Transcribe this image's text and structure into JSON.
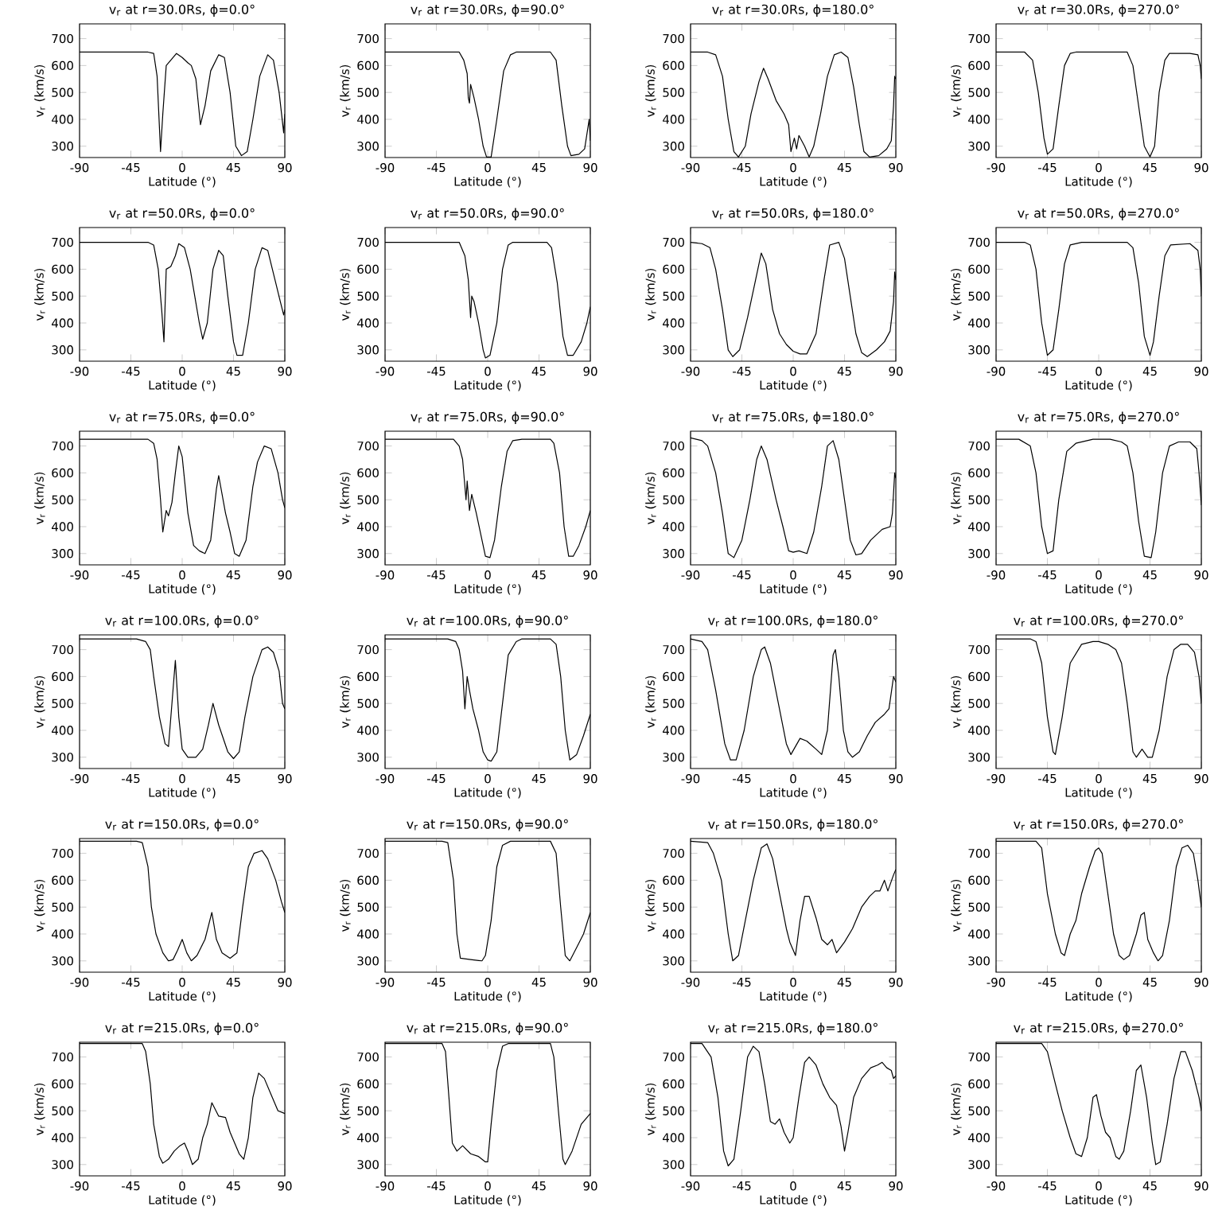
{
  "chart_data": [
    {
      "type": "line",
      "title": "v$_{r}$ at r=30.0Rs, ϕ=0.0°",
      "xlabel": "Latitude (°)",
      "ylabel": "v$_{r}$ (km/s)",
      "xlim": [
        -90,
        90
      ],
      "ylim": [
        258,
        755
      ],
      "xticks": [
        -90,
        -45,
        0,
        45,
        90
      ],
      "yticks": [
        300,
        400,
        500,
        600,
        700
      ],
      "color": "#000000",
      "x": [
        -90,
        -30,
        -25,
        -22,
        -19,
        -17,
        -14,
        -10,
        -5,
        0,
        5,
        8,
        12,
        16,
        20,
        25,
        32,
        37,
        42,
        47,
        52,
        57,
        62,
        68,
        75,
        80,
        85,
        89,
        90
      ],
      "values": [
        650,
        650,
        645,
        560,
        280,
        420,
        600,
        620,
        645,
        630,
        610,
        600,
        550,
        380,
        450,
        580,
        640,
        630,
        500,
        300,
        265,
        280,
        400,
        560,
        640,
        620,
        500,
        350,
        420
      ]
    },
    {
      "type": "line",
      "title": "v$_{r}$ at r=30.0Rs, ϕ=90.0°",
      "xlabel": "Latitude (°)",
      "ylabel": "v$_{r}$ (km/s)",
      "xlim": [
        -90,
        90
      ],
      "ylim": [
        258,
        755
      ],
      "xticks": [
        -90,
        -45,
        0,
        45,
        90
      ],
      "yticks": [
        300,
        400,
        500,
        600,
        700
      ],
      "color": "#000000",
      "x": [
        -90,
        -25,
        -21,
        -18,
        -17,
        -16,
        -15,
        -12,
        -8,
        -4,
        -1,
        3,
        8,
        14,
        20,
        25,
        55,
        60,
        65,
        70,
        73,
        80,
        85,
        89,
        90
      ],
      "values": [
        650,
        650,
        620,
        570,
        480,
        460,
        530,
        480,
        400,
        300,
        260,
        260,
        400,
        580,
        640,
        650,
        650,
        620,
        450,
        300,
        265,
        270,
        290,
        400,
        320
      ]
    },
    {
      "type": "line",
      "title": "v$_{r}$ at r=30.0Rs, ϕ=180.0°",
      "xlabel": "Latitude (°)",
      "ylabel": "v$_{r}$ (km/s)",
      "xlim": [
        -90,
        90
      ],
      "ylim": [
        258,
        755
      ],
      "xticks": [
        -90,
        -45,
        0,
        45,
        90
      ],
      "yticks": [
        300,
        400,
        500,
        600,
        700
      ],
      "color": "#000000",
      "x": [
        -90,
        -75,
        -68,
        -62,
        -57,
        -52,
        -48,
        -42,
        -37,
        -30,
        -26,
        -22,
        -15,
        -8,
        -4,
        -2,
        1,
        3,
        5,
        10,
        14,
        18,
        24,
        30,
        36,
        42,
        48,
        53,
        58,
        62,
        67,
        75,
        82,
        86,
        88,
        89,
        90
      ],
      "values": [
        650,
        650,
        640,
        560,
        400,
        280,
        260,
        300,
        420,
        540,
        590,
        550,
        470,
        420,
        380,
        280,
        330,
        290,
        340,
        300,
        260,
        300,
        420,
        560,
        640,
        650,
        630,
        520,
        380,
        280,
        260,
        265,
        290,
        320,
        450,
        560,
        550
      ]
    },
    {
      "type": "line",
      "title": "v$_{r}$ at r=30.0Rs, ϕ=270.0°",
      "xlabel": "Latitude (°)",
      "ylabel": "v$_{r}$ (km/s)",
      "xlim": [
        -90,
        90
      ],
      "ylim": [
        258,
        755
      ],
      "xticks": [
        -90,
        -45,
        0,
        45,
        90
      ],
      "yticks": [
        300,
        400,
        500,
        600,
        700
      ],
      "color": "#000000",
      "x": [
        -90,
        -65,
        -58,
        -53,
        -48,
        -45,
        -40,
        -35,
        -30,
        -25,
        -20,
        25,
        30,
        35,
        40,
        45,
        49,
        53,
        58,
        62,
        80,
        87,
        89,
        90
      ],
      "values": [
        650,
        650,
        620,
        500,
        330,
        270,
        290,
        450,
        600,
        645,
        650,
        650,
        600,
        450,
        300,
        260,
        300,
        500,
        620,
        645,
        645,
        640,
        600,
        550
      ]
    },
    {
      "type": "line",
      "title": "v$_{r}$ at r=50.0Rs, ϕ=0.0°",
      "xlabel": "Latitude (°)",
      "ylabel": "v$_{r}$ (km/s)",
      "xlim": [
        -90,
        90
      ],
      "ylim": [
        258,
        755
      ],
      "xticks": [
        -90,
        -45,
        0,
        45,
        90
      ],
      "yticks": [
        300,
        400,
        500,
        600,
        700
      ],
      "color": "#000000",
      "x": [
        -90,
        -30,
        -25,
        -21,
        -18,
        -16,
        -14,
        -10,
        -6,
        -3,
        2,
        7,
        11,
        15,
        18,
        22,
        27,
        32,
        36,
        40,
        45,
        48,
        53,
        58,
        64,
        70,
        75,
        82,
        86,
        89,
        90
      ],
      "values": [
        700,
        700,
        690,
        600,
        450,
        330,
        600,
        610,
        650,
        695,
        680,
        600,
        500,
        400,
        340,
        400,
        600,
        670,
        650,
        500,
        330,
        280,
        280,
        400,
        600,
        680,
        670,
        550,
        480,
        430,
        450
      ]
    },
    {
      "type": "line",
      "title": "v$_{r}$ at r=50.0Rs, ϕ=90.0°",
      "xlabel": "Latitude (°)",
      "ylabel": "v$_{r}$ (km/s)",
      "xlim": [
        -90,
        90
      ],
      "ylim": [
        258,
        755
      ],
      "xticks": [
        -90,
        -45,
        0,
        45,
        90
      ],
      "yticks": [
        300,
        400,
        500,
        600,
        700
      ],
      "color": "#000000",
      "x": [
        -90,
        -25,
        -20,
        -17,
        -15,
        -14,
        -12,
        -8,
        -4,
        -2,
        2,
        8,
        13,
        18,
        22,
        52,
        56,
        61,
        66,
        70,
        75,
        82,
        87,
        90
      ],
      "values": [
        700,
        700,
        650,
        560,
        420,
        500,
        480,
        400,
        300,
        270,
        280,
        400,
        600,
        690,
        700,
        700,
        680,
        550,
        350,
        280,
        280,
        330,
        400,
        460
      ]
    },
    {
      "type": "line",
      "title": "v$_{r}$ at r=50.0Rs, ϕ=180.0°",
      "xlabel": "Latitude (°)",
      "ylabel": "v$_{r}$ (km/s)",
      "xlim": [
        -90,
        90
      ],
      "ylim": [
        258,
        755
      ],
      "xticks": [
        -90,
        -45,
        0,
        45,
        90
      ],
      "yticks": [
        300,
        400,
        500,
        600,
        700
      ],
      "color": "#000000",
      "x": [
        -90,
        -80,
        -73,
        -68,
        -62,
        -57,
        -53,
        -47,
        -40,
        -33,
        -28,
        -24,
        -18,
        -12,
        -6,
        0,
        6,
        12,
        20,
        27,
        32,
        40,
        45,
        50,
        55,
        60,
        65,
        73,
        80,
        85,
        88,
        89,
        90
      ],
      "values": [
        700,
        695,
        680,
        600,
        450,
        300,
        275,
        300,
        420,
        560,
        660,
        620,
        450,
        360,
        320,
        295,
        285,
        285,
        360,
        560,
        690,
        700,
        640,
        500,
        360,
        290,
        275,
        300,
        330,
        370,
        480,
        590,
        560
      ]
    },
    {
      "type": "line",
      "title": "v$_{r}$ at r=50.0Rs, ϕ=270.0°",
      "xlabel": "Latitude (°)",
      "ylabel": "v$_{r}$ (km/s)",
      "xlim": [
        -90,
        90
      ],
      "ylim": [
        258,
        755
      ],
      "xticks": [
        -90,
        -45,
        0,
        45,
        90
      ],
      "yticks": [
        300,
        400,
        500,
        600,
        700
      ],
      "color": "#000000",
      "x": [
        -90,
        -65,
        -60,
        -55,
        -50,
        -45,
        -40,
        -35,
        -30,
        -25,
        -15,
        25,
        30,
        35,
        40,
        45,
        48,
        53,
        58,
        63,
        80,
        87,
        89,
        90
      ],
      "values": [
        700,
        700,
        690,
        600,
        400,
        280,
        300,
        450,
        620,
        690,
        700,
        700,
        680,
        550,
        350,
        280,
        330,
        500,
        650,
        690,
        695,
        670,
        600,
        500
      ]
    },
    {
      "type": "line",
      "title": "v$_{r}$ at r=75.0Rs, ϕ=0.0°",
      "xlabel": "Latitude (°)",
      "ylabel": "v$_{r}$ (km/s)",
      "xlim": [
        -90,
        90
      ],
      "ylim": [
        258,
        755
      ],
      "xticks": [
        -90,
        -45,
        0,
        45,
        90
      ],
      "yticks": [
        300,
        400,
        500,
        600,
        700
      ],
      "color": "#000000",
      "x": [
        -90,
        -30,
        -25,
        -22,
        -19,
        -17,
        -14,
        -12,
        -9,
        -6,
        -3,
        0,
        5,
        10,
        15,
        20,
        25,
        30,
        32,
        38,
        42,
        46,
        50,
        56,
        62,
        66,
        72,
        78,
        84,
        88,
        90
      ],
      "values": [
        725,
        725,
        710,
        650,
        500,
        380,
        460,
        440,
        490,
        600,
        700,
        660,
        450,
        330,
        310,
        300,
        350,
        540,
        590,
        450,
        380,
        300,
        290,
        350,
        550,
        640,
        700,
        690,
        600,
        500,
        470
      ]
    },
    {
      "type": "line",
      "title": "v$_{r}$ at r=75.0Rs, ϕ=90.0°",
      "xlabel": "Latitude (°)",
      "ylabel": "v$_{r}$ (km/s)",
      "xlim": [
        -90,
        90
      ],
      "ylim": [
        258,
        755
      ],
      "xticks": [
        -90,
        -45,
        0,
        45,
        90
      ],
      "yticks": [
        300,
        400,
        500,
        600,
        700
      ],
      "color": "#000000",
      "x": [
        -90,
        -30,
        -25,
        -22,
        -19,
        -18,
        -16,
        -14,
        -10,
        -5,
        -2,
        2,
        6,
        12,
        17,
        22,
        30,
        55,
        58,
        63,
        67,
        71,
        75,
        80,
        86,
        90
      ],
      "values": [
        725,
        725,
        700,
        650,
        500,
        570,
        460,
        520,
        450,
        350,
        290,
        285,
        350,
        550,
        680,
        720,
        725,
        725,
        710,
        600,
        400,
        290,
        290,
        330,
        400,
        460
      ]
    },
    {
      "type": "line",
      "title": "v$_{r}$ at r=75.0Rs, ϕ=180.0°",
      "xlabel": "Latitude (°)",
      "ylabel": "v$_{r}$ (km/s)",
      "xlim": [
        -90,
        90
      ],
      "ylim": [
        258,
        755
      ],
      "xticks": [
        -90,
        -45,
        0,
        45,
        90
      ],
      "yticks": [
        300,
        400,
        500,
        600,
        700
      ],
      "color": "#000000",
      "x": [
        -90,
        -80,
        -75,
        -68,
        -62,
        -57,
        -52,
        -45,
        -38,
        -32,
        -28,
        -23,
        -15,
        -9,
        -4,
        0,
        5,
        12,
        18,
        25,
        30,
        35,
        40,
        45,
        50,
        55,
        60,
        68,
        78,
        85,
        87,
        89,
        90
      ],
      "values": [
        730,
        720,
        700,
        600,
        450,
        300,
        285,
        350,
        500,
        650,
        700,
        650,
        500,
        400,
        310,
        305,
        310,
        300,
        380,
        550,
        700,
        720,
        650,
        500,
        350,
        295,
        300,
        350,
        390,
        400,
        450,
        600,
        580
      ]
    },
    {
      "type": "line",
      "title": "v$_{r}$ at r=75.0Rs, ϕ=270.0°",
      "xlabel": "Latitude (°)",
      "ylabel": "v$_{r}$ (km/s)",
      "xlim": [
        -90,
        90
      ],
      "ylim": [
        258,
        755
      ],
      "xticks": [
        -90,
        -45,
        0,
        45,
        90
      ],
      "yticks": [
        300,
        400,
        500,
        600,
        700
      ],
      "color": "#000000",
      "x": [
        -90,
        -70,
        -60,
        -55,
        -50,
        -45,
        -40,
        -35,
        -28,
        -20,
        -5,
        10,
        20,
        25,
        30,
        35,
        40,
        46,
        50,
        56,
        62,
        70,
        80,
        86,
        88,
        90
      ],
      "values": [
        725,
        725,
        700,
        600,
        400,
        300,
        310,
        500,
        680,
        710,
        725,
        725,
        715,
        700,
        600,
        420,
        290,
        285,
        380,
        600,
        700,
        715,
        715,
        690,
        600,
        480
      ]
    },
    {
      "type": "line",
      "title": "v$_{r}$ at r=100.0Rs, ϕ=0.0°",
      "xlabel": "Latitude (°)",
      "ylabel": "v$_{r}$ (km/s)",
      "xlim": [
        -90,
        90
      ],
      "ylim": [
        258,
        755
      ],
      "xticks": [
        -90,
        -45,
        0,
        45,
        90
      ],
      "yticks": [
        300,
        400,
        500,
        600,
        700
      ],
      "color": "#000000",
      "x": [
        -90,
        -40,
        -32,
        -28,
        -25,
        -20,
        -15,
        -12,
        -9,
        -6,
        -3,
        0,
        5,
        12,
        18,
        23,
        27,
        32,
        40,
        45,
        50,
        55,
        62,
        70,
        75,
        80,
        85,
        88,
        90
      ],
      "values": [
        740,
        740,
        730,
        700,
        600,
        450,
        350,
        340,
        500,
        660,
        450,
        330,
        300,
        300,
        330,
        420,
        500,
        420,
        320,
        295,
        320,
        450,
        600,
        700,
        710,
        690,
        620,
        500,
        480
      ]
    },
    {
      "type": "line",
      "title": "v$_{r}$ at r=100.0Rs, ϕ=90.0°",
      "xlabel": "Latitude (°)",
      "ylabel": "v$_{r}$ (km/s)",
      "xlim": [
        -90,
        90
      ],
      "ylim": [
        258,
        755
      ],
      "xticks": [
        -90,
        -45,
        0,
        45,
        90
      ],
      "yticks": [
        300,
        400,
        500,
        600,
        700
      ],
      "color": "#000000",
      "x": [
        -90,
        -35,
        -28,
        -25,
        -22,
        -20,
        -18,
        -16,
        -13,
        -8,
        -4,
        0,
        3,
        8,
        13,
        18,
        25,
        30,
        55,
        60,
        64,
        68,
        72,
        78,
        84,
        90
      ],
      "values": [
        740,
        740,
        730,
        700,
        620,
        480,
        600,
        550,
        480,
        400,
        320,
        290,
        285,
        320,
        500,
        680,
        730,
        740,
        740,
        720,
        600,
        400,
        290,
        310,
        380,
        460
      ]
    },
    {
      "type": "line",
      "title": "v$_{r}$ at r=100.0Rs, ϕ=180.0°",
      "xlabel": "Latitude (°)",
      "ylabel": "v$_{r}$ (km/s)",
      "xlim": [
        -90,
        90
      ],
      "ylim": [
        258,
        755
      ],
      "xticks": [
        -90,
        -45,
        0,
        45,
        90
      ],
      "yticks": [
        300,
        400,
        500,
        600,
        700
      ],
      "color": "#000000",
      "x": [
        -90,
        -80,
        -75,
        -68,
        -60,
        -55,
        -50,
        -43,
        -35,
        -28,
        -25,
        -20,
        -13,
        -6,
        -2,
        2,
        6,
        12,
        20,
        25,
        30,
        35,
        37,
        40,
        44,
        48,
        52,
        58,
        65,
        72,
        80,
        84,
        88,
        90
      ],
      "values": [
        740,
        730,
        700,
        550,
        350,
        290,
        290,
        400,
        600,
        700,
        710,
        650,
        500,
        350,
        310,
        340,
        370,
        360,
        330,
        310,
        400,
        680,
        700,
        600,
        400,
        320,
        300,
        320,
        380,
        430,
        460,
        480,
        600,
        580
      ]
    },
    {
      "type": "line",
      "title": "v$_{r}$ at r=100.0Rs, ϕ=270.0°",
      "xlabel": "Latitude (°)",
      "ylabel": "v$_{r}$ (km/s)",
      "xlim": [
        -90,
        90
      ],
      "ylim": [
        258,
        755
      ],
      "xticks": [
        -90,
        -45,
        0,
        45,
        90
      ],
      "yticks": [
        300,
        400,
        500,
        600,
        700
      ],
      "color": "#000000",
      "x": [
        -90,
        -60,
        -55,
        -50,
        -45,
        -40,
        -38,
        -32,
        -25,
        -15,
        -5,
        0,
        8,
        15,
        20,
        25,
        30,
        33,
        38,
        43,
        47,
        53,
        60,
        66,
        72,
        78,
        84,
        88,
        90
      ],
      "values": [
        740,
        740,
        730,
        650,
        450,
        320,
        310,
        450,
        650,
        720,
        730,
        730,
        720,
        700,
        650,
        500,
        320,
        300,
        330,
        300,
        300,
        400,
        600,
        700,
        720,
        720,
        690,
        600,
        500
      ]
    },
    {
      "type": "line",
      "title": "v$_{r}$ at r=150.0Rs, ϕ=0.0°",
      "xlabel": "Latitude (°)",
      "ylabel": "v$_{r}$ (km/s)",
      "xlim": [
        -90,
        90
      ],
      "ylim": [
        258,
        755
      ],
      "xticks": [
        -90,
        -45,
        0,
        45,
        90
      ],
      "yticks": [
        300,
        400,
        500,
        600,
        700
      ],
      "color": "#000000",
      "x": [
        -90,
        -40,
        -35,
        -30,
        -27,
        -23,
        -17,
        -12,
        -8,
        -4,
        0,
        4,
        8,
        13,
        20,
        26,
        30,
        35,
        42,
        48,
        53,
        58,
        63,
        70,
        75,
        82,
        87,
        90
      ],
      "values": [
        745,
        745,
        740,
        650,
        500,
        400,
        330,
        300,
        305,
        340,
        380,
        330,
        300,
        320,
        380,
        480,
        380,
        330,
        310,
        330,
        500,
        650,
        700,
        710,
        680,
        600,
        520,
        480
      ]
    },
    {
      "type": "line",
      "title": "v$_{r}$ at r=150.0Rs, ϕ=90.0°",
      "xlabel": "Latitude (°)",
      "ylabel": "v$_{r}$ (km/s)",
      "xlim": [
        -90,
        90
      ],
      "ylim": [
        258,
        755
      ],
      "xticks": [
        -90,
        -45,
        0,
        45,
        90
      ],
      "yticks": [
        300,
        400,
        500,
        600,
        700
      ],
      "color": "#000000",
      "x": [
        -90,
        -40,
        -35,
        -30,
        -27,
        -24,
        -15,
        -5,
        -2,
        3,
        8,
        13,
        20,
        55,
        60,
        64,
        68,
        72,
        78,
        84,
        90
      ],
      "values": [
        745,
        745,
        740,
        600,
        400,
        310,
        305,
        300,
        320,
        450,
        650,
        730,
        745,
        745,
        700,
        500,
        320,
        300,
        350,
        400,
        480
      ]
    },
    {
      "type": "line",
      "title": "v$_{r}$ at r=150.0Rs, ϕ=180.0°",
      "xlabel": "Latitude (°)",
      "ylabel": "v$_{r}$ (km/s)",
      "xlim": [
        -90,
        90
      ],
      "ylim": [
        258,
        755
      ],
      "xticks": [
        -90,
        -45,
        0,
        45,
        90
      ],
      "yticks": [
        300,
        400,
        500,
        600,
        700
      ],
      "color": "#000000",
      "x": [
        -90,
        -75,
        -70,
        -63,
        -57,
        -53,
        -48,
        -42,
        -35,
        -28,
        -23,
        -18,
        -12,
        -6,
        -3,
        0,
        2,
        6,
        10,
        14,
        20,
        25,
        30,
        34,
        38,
        45,
        52,
        60,
        67,
        72,
        76,
        80,
        83,
        88,
        90
      ],
      "values": [
        745,
        740,
        700,
        600,
        400,
        300,
        320,
        450,
        600,
        720,
        735,
        680,
        550,
        420,
        370,
        340,
        320,
        450,
        540,
        540,
        460,
        380,
        360,
        380,
        330,
        370,
        420,
        500,
        540,
        560,
        560,
        600,
        560,
        620,
        640
      ]
    },
    {
      "type": "line",
      "title": "v$_{r}$ at r=150.0Rs, ϕ=270.0°",
      "xlabel": "Latitude (°)",
      "ylabel": "v$_{r}$ (km/s)",
      "xlim": [
        -90,
        90
      ],
      "ylim": [
        258,
        755
      ],
      "xticks": [
        -90,
        -45,
        0,
        45,
        90
      ],
      "yticks": [
        300,
        400,
        500,
        600,
        700
      ],
      "color": "#000000",
      "x": [
        -90,
        -55,
        -50,
        -45,
        -38,
        -33,
        -30,
        -25,
        -20,
        -15,
        -8,
        -3,
        0,
        3,
        8,
        13,
        18,
        22,
        27,
        33,
        37,
        40,
        43,
        48,
        52,
        56,
        62,
        68,
        73,
        78,
        83,
        87,
        90
      ],
      "values": [
        745,
        745,
        720,
        550,
        400,
        330,
        320,
        400,
        450,
        550,
        650,
        710,
        720,
        700,
        550,
        400,
        320,
        305,
        320,
        400,
        470,
        480,
        380,
        330,
        300,
        320,
        450,
        650,
        720,
        730,
        700,
        600,
        500
      ]
    },
    {
      "type": "line",
      "title": "v$_{r}$ at r=215.0Rs, ϕ=0.0°",
      "xlabel": "Latitude (°)",
      "ylabel": "v$_{r}$ (km/s)",
      "xlim": [
        -90,
        90
      ],
      "ylim": [
        258,
        755
      ],
      "xticks": [
        -90,
        -45,
        0,
        45,
        90
      ],
      "yticks": [
        300,
        400,
        500,
        600,
        700
      ],
      "color": "#000000",
      "x": [
        -90,
        -35,
        -32,
        -28,
        -25,
        -20,
        -17,
        -12,
        -7,
        -2,
        2,
        5,
        9,
        14,
        18,
        22,
        26,
        32,
        38,
        42,
        50,
        54,
        58,
        62,
        67,
        72,
        78,
        84,
        90
      ],
      "values": [
        750,
        750,
        720,
        600,
        450,
        330,
        305,
        320,
        350,
        370,
        380,
        350,
        300,
        320,
        400,
        450,
        530,
        480,
        475,
        420,
        340,
        320,
        400,
        550,
        640,
        620,
        560,
        500,
        490
      ]
    },
    {
      "type": "line",
      "title": "v$_{r}$ at r=215.0Rs, ϕ=90.0°",
      "xlabel": "Latitude (°)",
      "ylabel": "v$_{r}$ (km/s)",
      "xlim": [
        -90,
        90
      ],
      "ylim": [
        258,
        755
      ],
      "xticks": [
        -90,
        -45,
        0,
        45,
        90
      ],
      "yticks": [
        300,
        400,
        500,
        600,
        700
      ],
      "color": "#000000",
      "x": [
        -90,
        -40,
        -37,
        -34,
        -31,
        -27,
        -22,
        -15,
        -8,
        -2,
        0,
        3,
        8,
        13,
        18,
        55,
        58,
        62,
        66,
        68,
        74,
        82,
        90
      ],
      "values": [
        750,
        750,
        720,
        550,
        380,
        350,
        370,
        340,
        330,
        310,
        310,
        450,
        650,
        740,
        750,
        750,
        700,
        500,
        320,
        300,
        350,
        450,
        490
      ]
    },
    {
      "type": "line",
      "title": "v$_{r}$ at r=215.0Rs, ϕ=180.0°",
      "xlabel": "Latitude (°)",
      "ylabel": "v$_{r}$ (km/s)",
      "xlim": [
        -90,
        90
      ],
      "ylim": [
        258,
        755
      ],
      "xticks": [
        -90,
        -45,
        0,
        45,
        90
      ],
      "yticks": [
        300,
        400,
        500,
        600,
        700
      ],
      "color": "#000000",
      "x": [
        -90,
        -80,
        -72,
        -66,
        -61,
        -57,
        -52,
        -46,
        -40,
        -35,
        -30,
        -25,
        -20,
        -16,
        -12,
        -8,
        -3,
        0,
        5,
        10,
        14,
        20,
        26,
        32,
        38,
        42,
        45,
        48,
        53,
        60,
        68,
        74,
        78,
        82,
        86,
        88,
        90
      ],
      "values": [
        750,
        750,
        700,
        550,
        350,
        295,
        320,
        500,
        700,
        740,
        720,
        600,
        460,
        450,
        470,
        420,
        380,
        400,
        550,
        680,
        700,
        670,
        600,
        550,
        520,
        440,
        350,
        420,
        550,
        620,
        660,
        670,
        680,
        660,
        650,
        620,
        630
      ]
    },
    {
      "type": "line",
      "title": "v$_{r}$ at r=215.0Rs, ϕ=270.0°",
      "xlabel": "Latitude (°)",
      "ylabel": "v$_{r}$ (km/s)",
      "xlim": [
        -90,
        90
      ],
      "ylim": [
        258,
        755
      ],
      "xticks": [
        -90,
        -45,
        0,
        45,
        90
      ],
      "yticks": [
        300,
        400,
        500,
        600,
        700
      ],
      "color": "#000000",
      "x": [
        -90,
        -50,
        -45,
        -38,
        -32,
        -25,
        -20,
        -15,
        -10,
        -5,
        -2,
        2,
        6,
        10,
        15,
        18,
        22,
        28,
        33,
        37,
        42,
        47,
        50,
        54,
        60,
        66,
        72,
        76,
        82,
        88,
        90
      ],
      "values": [
        750,
        750,
        720,
        600,
        500,
        400,
        340,
        330,
        400,
        550,
        560,
        480,
        420,
        400,
        330,
        320,
        350,
        500,
        650,
        670,
        550,
        380,
        300,
        310,
        450,
        620,
        720,
        720,
        650,
        550,
        500
      ]
    }
  ]
}
